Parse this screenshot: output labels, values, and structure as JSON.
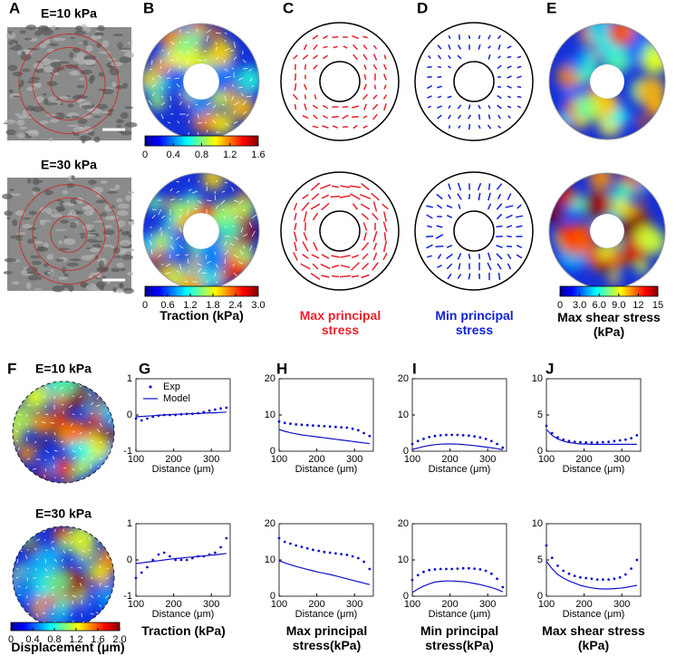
{
  "panel_letters": [
    "A",
    "B",
    "C",
    "D",
    "E",
    "F",
    "G",
    "H",
    "I",
    "J"
  ],
  "panel_A": {
    "labels": [
      "E=10 kPa",
      "E=30 kPa"
    ]
  },
  "panel_F": {
    "labels": [
      "E=10 kPa",
      "E=30 kPa"
    ],
    "colorbar": {
      "lim": [
        0,
        2
      ],
      "ticks": [
        0,
        0.4,
        0.8,
        1.2,
        1.6,
        {
          "value": 2,
          "label": "2.0"
        }
      ],
      "label": "Displacement (μm)"
    }
  },
  "panel_B": {
    "colorbars": [
      {
        "lim": [
          0,
          1.6
        ],
        "ticks": [
          0,
          0.4,
          0.8,
          1.2,
          1.6
        ]
      },
      {
        "lim": [
          0,
          3
        ],
        "ticks": [
          0,
          0.6,
          1.2,
          1.8,
          2.4,
          {
            "value": 3,
            "label": "3.0"
          }
        ],
        "label": "Traction (kPa)"
      }
    ]
  },
  "panel_C": {
    "label": "Max principal stress",
    "color": "#e8202a"
  },
  "panel_D": {
    "label": "Min principal stress",
    "color": "#1020d8"
  },
  "panel_E": {
    "colorbar": {
      "lim": [
        0,
        15
      ],
      "ticks": [
        0,
        {
          "value": 3,
          "label": "3.0"
        },
        {
          "value": 6,
          "label": "6.0"
        },
        {
          "value": 9,
          "label": "9.0"
        },
        12,
        15
      ],
      "label": "Max shear stress (kPa)"
    }
  },
  "plot_captions": [
    "Traction (kPa)",
    "Max principal stress(kPa)",
    "Min principal stress(kPa)",
    "Max shear stress (kPa)"
  ],
  "chart_data": [
    {
      "type": "line",
      "xlabel": "Distance (μm)",
      "x": [
        100,
        115,
        130,
        145,
        160,
        175,
        190,
        205,
        220,
        235,
        250,
        265,
        280,
        295,
        310,
        325,
        340
      ],
      "xlim": [
        100,
        350
      ],
      "xticks": [
        100,
        200,
        300
      ],
      "ylim": [
        -1,
        1
      ],
      "yticks": [
        -1,
        0,
        1
      ],
      "legend": "upper left",
      "series": [
        {
          "name": "Exp",
          "color": "#1010c8",
          "style": "dots",
          "values": [
            -0.1,
            -0.15,
            -0.1,
            -0.05,
            -0.02,
            0,
            0,
            0,
            0.02,
            0.03,
            0.03,
            0.05,
            0.08,
            0.12,
            0.15,
            0.18,
            0.2
          ]
        },
        {
          "name": "Model",
          "color": "#1010c8",
          "style": "line",
          "values": [
            -0.05,
            -0.04,
            -0.03,
            -0.02,
            -0.01,
            0,
            0.01,
            0.02,
            0.02,
            0.03,
            0.04,
            0.04,
            0.05,
            0.06,
            0.06,
            0.07,
            0.08
          ]
        }
      ]
    },
    {
      "type": "line",
      "xlabel": "Distance (μm)",
      "x": [
        100,
        115,
        130,
        145,
        160,
        175,
        190,
        205,
        220,
        235,
        250,
        265,
        280,
        295,
        310,
        325,
        340
      ],
      "xlim": [
        100,
        350
      ],
      "xticks": [
        100,
        200,
        300
      ],
      "ylim": [
        -1,
        1
      ],
      "yticks": [
        -1,
        0,
        1
      ],
      "series": [
        {
          "color": "#1010c8",
          "style": "dots",
          "values": [
            -0.5,
            -0.35,
            -0.2,
            0,
            0.15,
            0.2,
            0.1,
            0,
            0,
            0,
            0.05,
            0.1,
            0.1,
            0.15,
            0.2,
            0.35,
            0.6
          ]
        },
        {
          "color": "#1010c8",
          "style": "line",
          "values": [
            -0.1,
            -0.08,
            -0.06,
            -0.04,
            -0.02,
            0,
            0.02,
            0.04,
            0.05,
            0.07,
            0.08,
            0.1,
            0.11,
            0.13,
            0.14,
            0.16,
            0.18
          ]
        }
      ]
    },
    {
      "type": "line",
      "xlabel": "Distance (μm)",
      "x": [
        100,
        115,
        130,
        145,
        160,
        175,
        190,
        205,
        220,
        235,
        250,
        265,
        280,
        295,
        310,
        325,
        340
      ],
      "xlim": [
        100,
        350
      ],
      "xticks": [
        100,
        200,
        300
      ],
      "ylim": [
        0,
        20
      ],
      "yticks": [
        0,
        10,
        20
      ],
      "series": [
        {
          "color": "#1010c8",
          "style": "dots",
          "values": [
            8.2,
            7.8,
            7.6,
            7.4,
            7.3,
            7.2,
            7.1,
            7,
            6.9,
            6.8,
            6.7,
            6.6,
            6.5,
            6.2,
            5.8,
            5,
            4.2
          ]
        },
        {
          "color": "#1010c8",
          "style": "line",
          "values": [
            6,
            5.5,
            5.1,
            4.8,
            4.5,
            4.3,
            4.1,
            3.9,
            3.7,
            3.5,
            3.3,
            3.1,
            2.9,
            2.7,
            2.5,
            2.3,
            2.1
          ]
        }
      ]
    },
    {
      "type": "line",
      "xlabel": "Distance (μm)",
      "x": [
        100,
        115,
        130,
        145,
        160,
        175,
        190,
        205,
        220,
        235,
        250,
        265,
        280,
        295,
        310,
        325,
        340
      ],
      "xlim": [
        100,
        350
      ],
      "xticks": [
        100,
        200,
        300
      ],
      "ylim": [
        0,
        20
      ],
      "yticks": [
        0,
        10,
        20
      ],
      "series": [
        {
          "color": "#1010c8",
          "style": "dots",
          "values": [
            16,
            15,
            14.5,
            14,
            13.6,
            13.2,
            12.8,
            12.5,
            12.2,
            12,
            11.8,
            11.6,
            11.4,
            11,
            10.5,
            9.5,
            7.5
          ]
        },
        {
          "color": "#1010c8",
          "style": "line",
          "values": [
            9.8,
            9.2,
            8.7,
            8.2,
            7.8,
            7.4,
            7,
            6.6,
            6.3,
            6,
            5.6,
            5.2,
            4.8,
            4.4,
            4,
            3.6,
            3.2
          ]
        }
      ]
    },
    {
      "type": "line",
      "xlabel": "Distance (μm)",
      "x": [
        100,
        115,
        130,
        145,
        160,
        175,
        190,
        205,
        220,
        235,
        250,
        265,
        280,
        295,
        310,
        325,
        340
      ],
      "xlim": [
        100,
        350
      ],
      "xticks": [
        100,
        200,
        300
      ],
      "ylim": [
        0,
        20
      ],
      "yticks": [
        0,
        10,
        20
      ],
      "series": [
        {
          "color": "#1010c8",
          "style": "dots",
          "values": [
            2,
            2.8,
            3.4,
            3.9,
            4.2,
            4.4,
            4.5,
            4.5,
            4.5,
            4.4,
            4.3,
            4.1,
            3.8,
            3.4,
            2.8,
            2,
            1
          ]
        },
        {
          "color": "#1010c8",
          "style": "line",
          "values": [
            0.5,
            0.9,
            1.3,
            1.6,
            1.8,
            1.95,
            2,
            2,
            1.95,
            1.85,
            1.7,
            1.55,
            1.35,
            1.15,
            0.95,
            0.7,
            0.4
          ]
        }
      ]
    },
    {
      "type": "line",
      "xlabel": "Distance (μm)",
      "x": [
        100,
        115,
        130,
        145,
        160,
        175,
        190,
        205,
        220,
        235,
        250,
        265,
        280,
        295,
        310,
        325,
        340
      ],
      "xlim": [
        100,
        350
      ],
      "xticks": [
        100,
        200,
        300
      ],
      "ylim": [
        0,
        20
      ],
      "yticks": [
        0,
        10,
        20
      ],
      "series": [
        {
          "color": "#1010c8",
          "style": "dots",
          "values": [
            4.5,
            5.8,
            6.7,
            7.2,
            7.4,
            7.5,
            7.5,
            7.5,
            7.6,
            7.7,
            7.7,
            7.6,
            7.4,
            7,
            6.2,
            4.8,
            2.5
          ]
        },
        {
          "color": "#1010c8",
          "style": "line",
          "values": [
            1,
            2,
            2.8,
            3.4,
            3.9,
            4.1,
            4.2,
            4.2,
            4.1,
            4,
            3.8,
            3.5,
            3.2,
            2.8,
            2.4,
            1.9,
            1.2
          ]
        }
      ]
    },
    {
      "type": "line",
      "xlabel": "Distance (μm)",
      "x": [
        100,
        115,
        130,
        145,
        160,
        175,
        190,
        205,
        220,
        235,
        250,
        265,
        280,
        295,
        310,
        325,
        340
      ],
      "xlim": [
        100,
        350
      ],
      "xticks": [
        100,
        200,
        300
      ],
      "ylim": [
        0,
        10
      ],
      "yticks": [
        0,
        5,
        10
      ],
      "series": [
        {
          "color": "#1010c8",
          "style": "dots",
          "values": [
            3.5,
            2.5,
            1.9,
            1.6,
            1.4,
            1.3,
            1.25,
            1.2,
            1.2,
            1.2,
            1.25,
            1.3,
            1.4,
            1.5,
            1.6,
            1.8,
            2.2
          ]
        },
        {
          "color": "#1010c8",
          "style": "line",
          "values": [
            3,
            2.2,
            1.7,
            1.4,
            1.2,
            1.1,
            1,
            1,
            0.95,
            0.95,
            0.95,
            0.95,
            0.95,
            0.95,
            0.95,
            0.95,
            0.95
          ]
        }
      ]
    },
    {
      "type": "line",
      "xlabel": "Distance (μm)",
      "x": [
        100,
        115,
        130,
        145,
        160,
        175,
        190,
        205,
        220,
        235,
        250,
        265,
        280,
        295,
        310,
        325,
        340
      ],
      "xlim": [
        100,
        350
      ],
      "xticks": [
        100,
        200,
        300
      ],
      "ylim": [
        0,
        10
      ],
      "yticks": [
        0,
        5,
        10
      ],
      "series": [
        {
          "color": "#1010c8",
          "style": "dots",
          "values": [
            7,
            5.3,
            4.2,
            3.5,
            3.1,
            2.8,
            2.6,
            2.5,
            2.4,
            2.3,
            2.3,
            2.3,
            2.4,
            2.6,
            3,
            3.8,
            5
          ]
        },
        {
          "color": "#1010c8",
          "style": "line",
          "values": [
            4.8,
            3.8,
            3,
            2.5,
            2.1,
            1.8,
            1.5,
            1.3,
            1.15,
            1.05,
            1,
            1,
            1.05,
            1.1,
            1.2,
            1.35,
            1.5
          ]
        }
      ]
    }
  ]
}
